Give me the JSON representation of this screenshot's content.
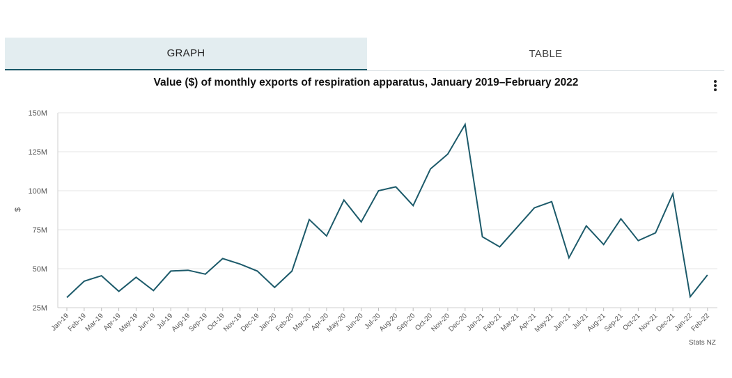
{
  "tabs": [
    {
      "label": "GRAPH",
      "active": true
    },
    {
      "label": "TABLE",
      "active": false
    }
  ],
  "menu_icon": "more-vertical-icon",
  "credit": "Stats NZ",
  "colors": {
    "line": "#1c5a6a",
    "tab_active_bg": "#e3edf0",
    "grid": "#e6e6e6"
  },
  "chart_data": {
    "type": "line",
    "title": "Value ($) of monthly exports of respiration apparatus, January 2019–February 2022",
    "xlabel": "",
    "ylabel": "$",
    "ylim": [
      25000000,
      150000000
    ],
    "yticks": [
      25000000,
      50000000,
      75000000,
      100000000,
      125000000,
      150000000
    ],
    "ytick_labels": [
      "25M",
      "50M",
      "75M",
      "100M",
      "125M",
      "150M"
    ],
    "grid": true,
    "categories": [
      "Jan-19",
      "Feb-19",
      "Mar-19",
      "Apr-19",
      "May-19",
      "Jun-19",
      "Jul-19",
      "Aug-19",
      "Sep-19",
      "Oct-19",
      "Nov-19",
      "Dec-19",
      "Jan-20",
      "Feb-20",
      "Mar-20",
      "Apr-20",
      "May-20",
      "Jun-20",
      "Jul-20",
      "Aug-20",
      "Sep-20",
      "Oct-20",
      "Nov-20",
      "Dec-20",
      "Jan-21",
      "Feb-21",
      "Mar-21",
      "Apr-21",
      "May-21",
      "Jun-21",
      "Jul-21",
      "Aug-21",
      "Sep-21",
      "Oct-21",
      "Nov-21",
      "Dec-21",
      "Jan-22",
      "Feb-22"
    ],
    "series": [
      {
        "values": [
          31500000,
          42000000,
          45500000,
          35500000,
          44500000,
          36000000,
          48500000,
          49000000,
          46500000,
          56500000,
          53000000,
          48500000,
          38000000,
          48500000,
          81500000,
          71000000,
          94000000,
          80000000,
          100000000,
          102500000,
          90500000,
          114000000,
          123500000,
          142500000,
          70500000,
          64000000,
          76500000,
          89000000,
          93000000,
          57000000,
          77500000,
          65500000,
          82000000,
          68000000,
          73000000,
          98000000,
          32000000,
          46000000
        ]
      }
    ]
  }
}
